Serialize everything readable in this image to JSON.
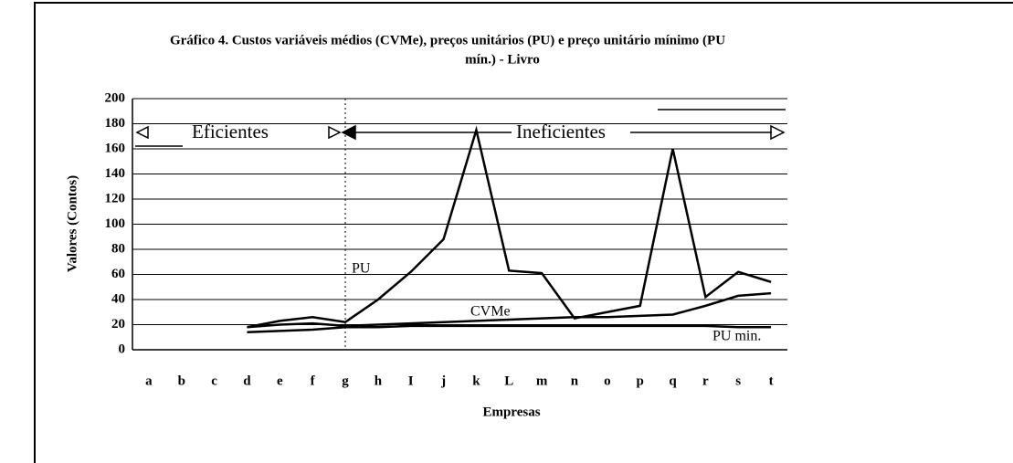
{
  "chart_data": {
    "type": "line",
    "title": [
      "Gráfico 4. Custos variáveis médios (CVMe), preços unitários (PU) e preço unitário mínimo (PU",
      "mín.) - Livro"
    ],
    "xlabel": "Empresas",
    "ylabel": "Valores (Contos)",
    "categories": [
      "a",
      "b",
      "c",
      "d",
      "e",
      "f",
      "g",
      "h",
      "I",
      "j",
      "k",
      "L",
      "m",
      "n",
      "o",
      "p",
      "q",
      "r",
      "s",
      "t"
    ],
    "series": [
      {
        "name": "PU",
        "color": "#000000",
        "values": [
          null,
          null,
          null,
          18,
          23,
          26,
          22,
          40,
          62,
          88,
          175,
          63,
          61,
          25,
          30,
          35,
          160,
          42,
          62,
          54
        ]
      },
      {
        "name": "CVMe",
        "color": "#000000",
        "values": [
          null,
          null,
          null,
          18,
          20,
          21,
          19,
          20,
          21,
          22,
          23,
          24,
          25,
          26,
          26,
          27,
          28,
          35,
          43,
          45
        ]
      },
      {
        "name": "PU min.",
        "color": "#000000",
        "values": [
          null,
          null,
          null,
          14,
          15,
          16,
          18,
          18,
          19,
          19,
          19,
          19,
          19,
          19,
          19,
          19,
          19,
          19,
          18,
          18
        ]
      }
    ],
    "annotations": [
      "Eficientes",
      "Ineficientes"
    ],
    "ylim": [
      0,
      200
    ],
    "yticks": [
      0,
      20,
      40,
      60,
      80,
      100,
      120,
      140,
      160,
      180,
      200
    ],
    "grid": true
  }
}
